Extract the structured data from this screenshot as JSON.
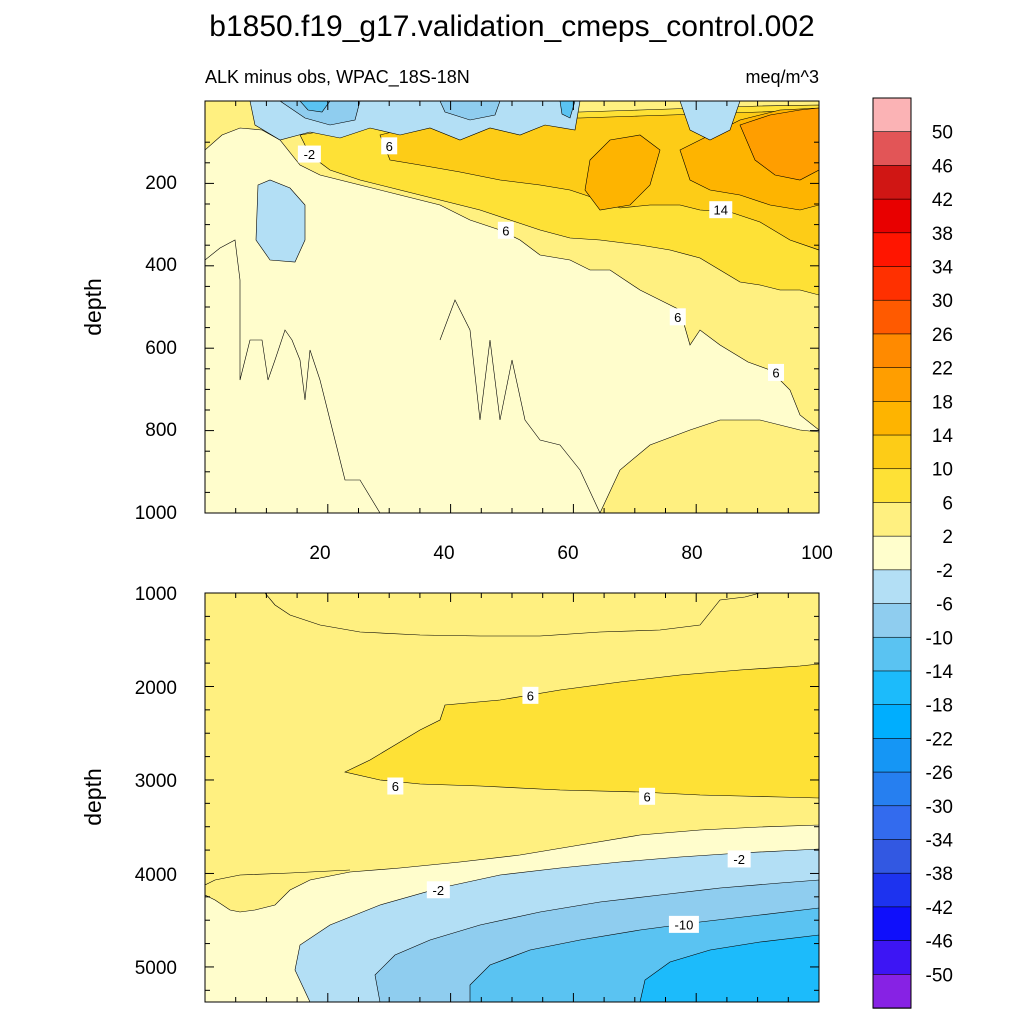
{
  "figure": {
    "title": "b1850.f19_g17.validation_cmeps_control.002",
    "subtitle_left": "ALK minus obs, WPAC_18S-18N",
    "subtitle_right": "meq/m^3"
  },
  "chart_data": [
    {
      "type": "heatmap",
      "panel": "upper",
      "xlabel": "",
      "ylabel": "depth",
      "xlim": [
        1,
        101
      ],
      "ylim": [
        1000,
        0
      ],
      "x_ticks": [
        "20",
        "40",
        "60",
        "80",
        "100"
      ],
      "y_ticks": [
        "200",
        "400",
        "600",
        "800",
        "1000"
      ],
      "contour_labels": [
        {
          "text": "-2",
          "x": 18,
          "depth": 130
        },
        {
          "text": "6",
          "x": 31,
          "depth": 110
        },
        {
          "text": "6",
          "x": 50,
          "depth": 315
        },
        {
          "text": "14",
          "x": 85,
          "depth": 265
        },
        {
          "text": "6",
          "x": 78,
          "depth": 525
        },
        {
          "text": "6",
          "x": 94,
          "depth": 660
        }
      ]
    },
    {
      "type": "heatmap",
      "panel": "lower",
      "xlabel": "",
      "ylabel": "depth",
      "xlim": [
        1,
        101
      ],
      "ylim": [
        5375,
        1000
      ],
      "y_ticks": [
        "1000",
        "2000",
        "3000",
        "4000",
        "5000"
      ],
      "contour_labels": [
        {
          "text": "6",
          "x": 54,
          "depth": 2100
        },
        {
          "text": "6",
          "x": 32,
          "depth": 3070
        },
        {
          "text": "6",
          "x": 73,
          "depth": 3180
        },
        {
          "text": "-2",
          "x": 88,
          "depth": 3850
        },
        {
          "text": "-2",
          "x": 39,
          "depth": 4180
        },
        {
          "text": "-10",
          "x": 79,
          "depth": 4550
        }
      ]
    }
  ],
  "colorbar": {
    "levels": [
      "50",
      "46",
      "42",
      "38",
      "34",
      "30",
      "26",
      "22",
      "18",
      "14",
      "10",
      "6",
      "2",
      "-2",
      "-6",
      "-10",
      "-14",
      "-18",
      "-22",
      "-26",
      "-30",
      "-34",
      "-38",
      "-42",
      "-46",
      "-50"
    ],
    "colors": [
      "#fbb3b5",
      "#e25557",
      "#d01614",
      "#e80000",
      "#ff1500",
      "#ff3000",
      "#ff5a00",
      "#ff8a00",
      "#ff9e00",
      "#feb400",
      "#fdcc17",
      "#fee136",
      "#fff080",
      "#fffecc",
      "#b3dff5",
      "#8fcdef",
      "#5ac3f2",
      "#1cbbfb",
      "#00aefe",
      "#1596f5",
      "#267ff0",
      "#336bee",
      "#3258e2",
      "#1d33ef",
      "#0f0ffb",
      "#3d15f4",
      "#8722e4"
    ]
  },
  "colors": {
    "pale_yellow": "#fffdcc",
    "yellow": "#fff080",
    "gold": "#fee136",
    "amber": "#fdcc17",
    "orange": "#feb400",
    "dark_orange": "#ff9e00",
    "light_blue": "#b3dff5",
    "mid_blue": "#8fcdef",
    "blue": "#5ac3f2",
    "bright_blue": "#1cbbfb"
  }
}
